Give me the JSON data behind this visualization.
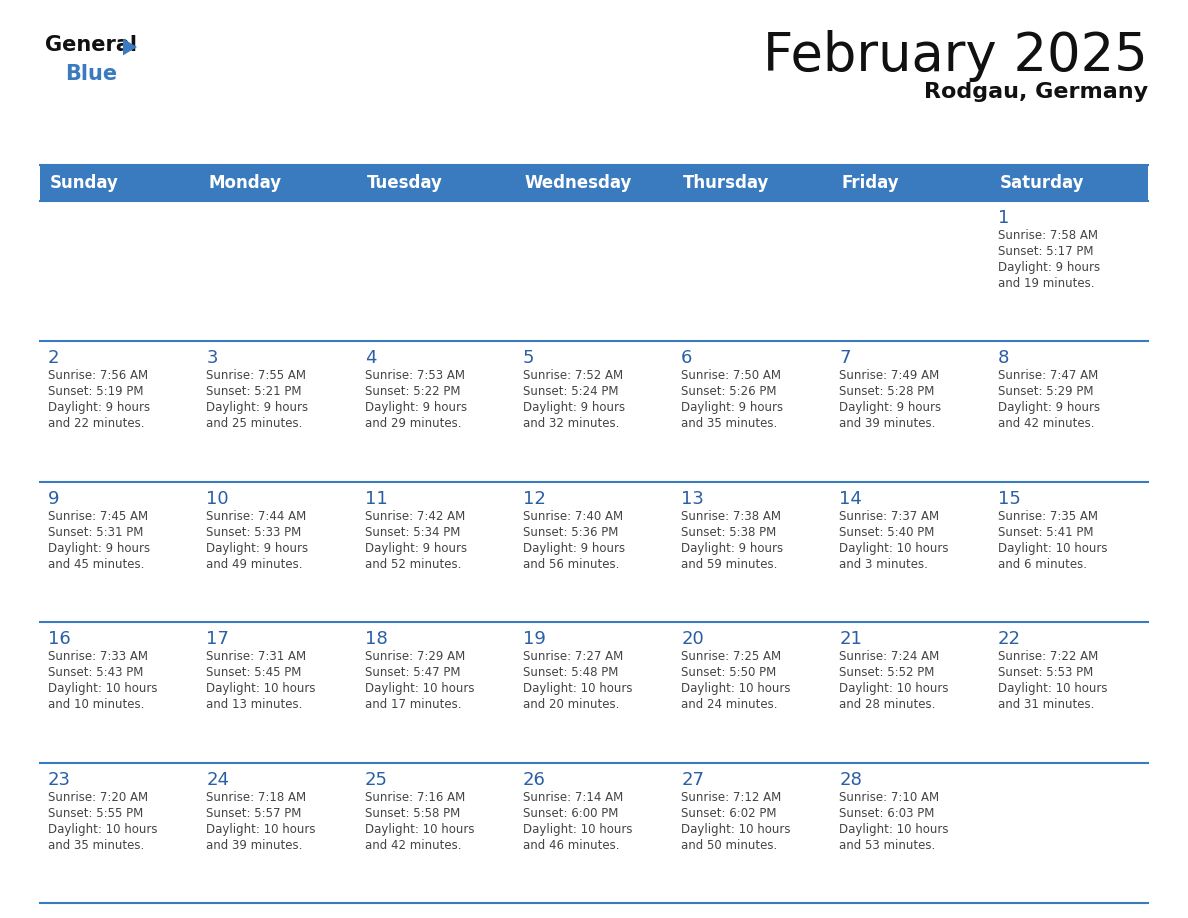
{
  "title": "February 2025",
  "subtitle": "Rodgau, Germany",
  "days_of_week": [
    "Sunday",
    "Monday",
    "Tuesday",
    "Wednesday",
    "Thursday",
    "Friday",
    "Saturday"
  ],
  "header_bg": "#3a7abf",
  "header_text": "#ffffff",
  "cell_bg": "#ffffff",
  "day_number_color": "#2a5fa5",
  "info_color": "#444444",
  "border_color": "#3a7abf",
  "title_color": "#111111",
  "subtitle_color": "#111111",
  "logo_general_color": "#111111",
  "logo_blue_color": "#3a7abf",
  "logo_triangle_color": "#3a7abf",
  "weeks": [
    [
      {
        "day": null,
        "sunrise": null,
        "sunset": null,
        "daylight": null
      },
      {
        "day": null,
        "sunrise": null,
        "sunset": null,
        "daylight": null
      },
      {
        "day": null,
        "sunrise": null,
        "sunset": null,
        "daylight": null
      },
      {
        "day": null,
        "sunrise": null,
        "sunset": null,
        "daylight": null
      },
      {
        "day": null,
        "sunrise": null,
        "sunset": null,
        "daylight": null
      },
      {
        "day": null,
        "sunrise": null,
        "sunset": null,
        "daylight": null
      },
      {
        "day": 1,
        "sunrise": "7:58 AM",
        "sunset": "5:17 PM",
        "daylight": "9 hours\nand 19 minutes."
      }
    ],
    [
      {
        "day": 2,
        "sunrise": "7:56 AM",
        "sunset": "5:19 PM",
        "daylight": "9 hours\nand 22 minutes."
      },
      {
        "day": 3,
        "sunrise": "7:55 AM",
        "sunset": "5:21 PM",
        "daylight": "9 hours\nand 25 minutes."
      },
      {
        "day": 4,
        "sunrise": "7:53 AM",
        "sunset": "5:22 PM",
        "daylight": "9 hours\nand 29 minutes."
      },
      {
        "day": 5,
        "sunrise": "7:52 AM",
        "sunset": "5:24 PM",
        "daylight": "9 hours\nand 32 minutes."
      },
      {
        "day": 6,
        "sunrise": "7:50 AM",
        "sunset": "5:26 PM",
        "daylight": "9 hours\nand 35 minutes."
      },
      {
        "day": 7,
        "sunrise": "7:49 AM",
        "sunset": "5:28 PM",
        "daylight": "9 hours\nand 39 minutes."
      },
      {
        "day": 8,
        "sunrise": "7:47 AM",
        "sunset": "5:29 PM",
        "daylight": "9 hours\nand 42 minutes."
      }
    ],
    [
      {
        "day": 9,
        "sunrise": "7:45 AM",
        "sunset": "5:31 PM",
        "daylight": "9 hours\nand 45 minutes."
      },
      {
        "day": 10,
        "sunrise": "7:44 AM",
        "sunset": "5:33 PM",
        "daylight": "9 hours\nand 49 minutes."
      },
      {
        "day": 11,
        "sunrise": "7:42 AM",
        "sunset": "5:34 PM",
        "daylight": "9 hours\nand 52 minutes."
      },
      {
        "day": 12,
        "sunrise": "7:40 AM",
        "sunset": "5:36 PM",
        "daylight": "9 hours\nand 56 minutes."
      },
      {
        "day": 13,
        "sunrise": "7:38 AM",
        "sunset": "5:38 PM",
        "daylight": "9 hours\nand 59 minutes."
      },
      {
        "day": 14,
        "sunrise": "7:37 AM",
        "sunset": "5:40 PM",
        "daylight": "10 hours\nand 3 minutes."
      },
      {
        "day": 15,
        "sunrise": "7:35 AM",
        "sunset": "5:41 PM",
        "daylight": "10 hours\nand 6 minutes."
      }
    ],
    [
      {
        "day": 16,
        "sunrise": "7:33 AM",
        "sunset": "5:43 PM",
        "daylight": "10 hours\nand 10 minutes."
      },
      {
        "day": 17,
        "sunrise": "7:31 AM",
        "sunset": "5:45 PM",
        "daylight": "10 hours\nand 13 minutes."
      },
      {
        "day": 18,
        "sunrise": "7:29 AM",
        "sunset": "5:47 PM",
        "daylight": "10 hours\nand 17 minutes."
      },
      {
        "day": 19,
        "sunrise": "7:27 AM",
        "sunset": "5:48 PM",
        "daylight": "10 hours\nand 20 minutes."
      },
      {
        "day": 20,
        "sunrise": "7:25 AM",
        "sunset": "5:50 PM",
        "daylight": "10 hours\nand 24 minutes."
      },
      {
        "day": 21,
        "sunrise": "7:24 AM",
        "sunset": "5:52 PM",
        "daylight": "10 hours\nand 28 minutes."
      },
      {
        "day": 22,
        "sunrise": "7:22 AM",
        "sunset": "5:53 PM",
        "daylight": "10 hours\nand 31 minutes."
      }
    ],
    [
      {
        "day": 23,
        "sunrise": "7:20 AM",
        "sunset": "5:55 PM",
        "daylight": "10 hours\nand 35 minutes."
      },
      {
        "day": 24,
        "sunrise": "7:18 AM",
        "sunset": "5:57 PM",
        "daylight": "10 hours\nand 39 minutes."
      },
      {
        "day": 25,
        "sunrise": "7:16 AM",
        "sunset": "5:58 PM",
        "daylight": "10 hours\nand 42 minutes."
      },
      {
        "day": 26,
        "sunrise": "7:14 AM",
        "sunset": "6:00 PM",
        "daylight": "10 hours\nand 46 minutes."
      },
      {
        "day": 27,
        "sunrise": "7:12 AM",
        "sunset": "6:02 PM",
        "daylight": "10 hours\nand 50 minutes."
      },
      {
        "day": 28,
        "sunrise": "7:10 AM",
        "sunset": "6:03 PM",
        "daylight": "10 hours\nand 53 minutes."
      },
      {
        "day": null,
        "sunrise": null,
        "sunset": null,
        "daylight": null
      }
    ]
  ]
}
